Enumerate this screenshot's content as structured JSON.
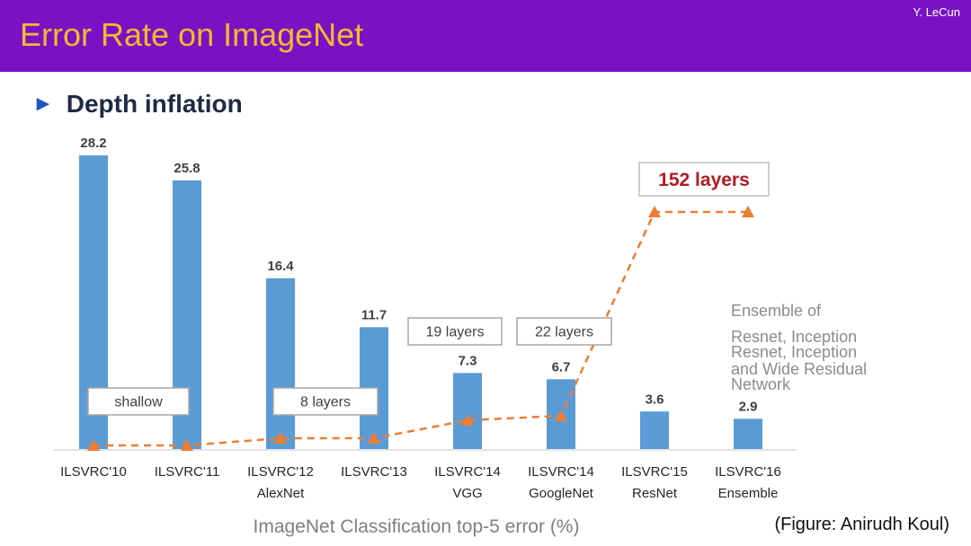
{
  "header": {
    "title": "Error Rate on ImageNet",
    "author": "Y. LeCun",
    "bg_color": "#7a12c4",
    "title_color": "#f5b82e"
  },
  "bullet": {
    "icon": "triangle-right-icon",
    "text": "Depth inflation"
  },
  "credit": "(Figure: Anirudh Koul)",
  "chart_data": {
    "type": "bar",
    "title": "",
    "xlabel": "ImageNet Classification top-5 error (%)",
    "ylabel": "",
    "categories": [
      [
        "ILSVRC'10"
      ],
      [
        "ILSVRC'11"
      ],
      [
        "ILSVRC'12",
        "AlexNet"
      ],
      [
        "ILSVRC'13"
      ],
      [
        "ILSVRC'14",
        "VGG"
      ],
      [
        "ILSVRC'14",
        "GoogleNet"
      ],
      [
        "ILSVRC'15",
        "ResNet"
      ],
      [
        "ILSVRC'16",
        "Ensemble"
      ]
    ],
    "values": [
      28.2,
      25.8,
      16.4,
      11.7,
      7.3,
      6.7,
      3.6,
      2.9
    ],
    "value_labels": [
      "28.2",
      "25.8",
      "16.4",
      "11.7",
      "7.3",
      "6.7",
      "3.6",
      "2.9"
    ],
    "ylim": [
      0,
      30
    ],
    "bar_color": "#5b9bd5",
    "depth_line": {
      "color": "#ed7d31",
      "style": "dashed",
      "layers": [
        1,
        1,
        8,
        8,
        19,
        22,
        152,
        152
      ]
    },
    "callouts": [
      {
        "text": "shallow"
      },
      {
        "text": "8 layers"
      },
      {
        "text": "19 layers"
      },
      {
        "text": "22 layers"
      },
      {
        "text": "152 layers"
      }
    ],
    "annotation": [
      "Ensemble of",
      "Resnet, Inception",
      "Resnet, Inception",
      "and Wide Residual",
      "Network"
    ],
    "grid": false
  }
}
